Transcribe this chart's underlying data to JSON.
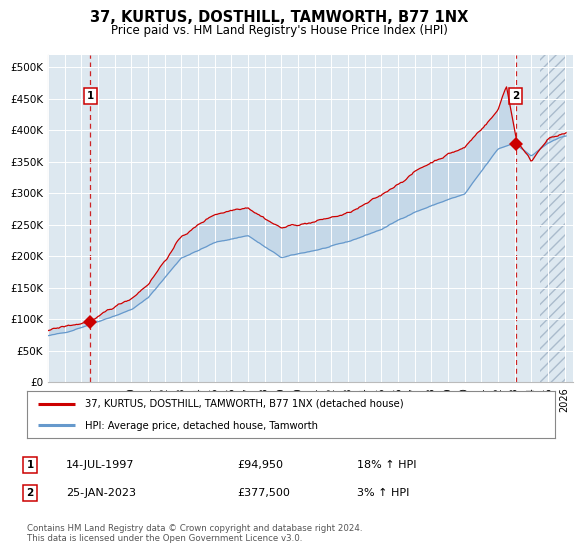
{
  "title": "37, KURTUS, DOSTHILL, TAMWORTH, B77 1NX",
  "subtitle": "Price paid vs. HM Land Registry's House Price Index (HPI)",
  "legend_line1": "37, KURTUS, DOSTHILL, TAMWORTH, B77 1NX (detached house)",
  "legend_line2": "HPI: Average price, detached house, Tamworth",
  "annotation1_label": "1",
  "annotation1_date": "14-JUL-1997",
  "annotation1_price": "£94,950",
  "annotation1_hpi": "18% ↑ HPI",
  "annotation2_label": "2",
  "annotation2_date": "25-JAN-2023",
  "annotation2_price": "£377,500",
  "annotation2_hpi": "3% ↑ HPI",
  "footer": "Contains HM Land Registry data © Crown copyright and database right 2024.\nThis data is licensed under the Open Government Licence v3.0.",
  "xmin": 1995.0,
  "xmax": 2026.5,
  "ymin": 0,
  "ymax": 520000,
  "yticks": [
    0,
    50000,
    100000,
    150000,
    200000,
    250000,
    300000,
    350000,
    400000,
    450000,
    500000
  ],
  "ytick_labels": [
    "£0",
    "£50K",
    "£100K",
    "£150K",
    "£200K",
    "£250K",
    "£300K",
    "£350K",
    "£400K",
    "£450K",
    "£500K"
  ],
  "xticks": [
    1995,
    1996,
    1997,
    1998,
    1999,
    2000,
    2001,
    2002,
    2003,
    2004,
    2005,
    2006,
    2007,
    2008,
    2009,
    2010,
    2011,
    2012,
    2013,
    2014,
    2015,
    2016,
    2017,
    2018,
    2019,
    2020,
    2021,
    2022,
    2023,
    2024,
    2025,
    2026
  ],
  "sale1_x": 1997.54,
  "sale1_y": 94950,
  "sale2_x": 2023.07,
  "sale2_y": 377500,
  "red_color": "#cc0000",
  "blue_color": "#6699cc",
  "plot_bg": "#dde8f0"
}
